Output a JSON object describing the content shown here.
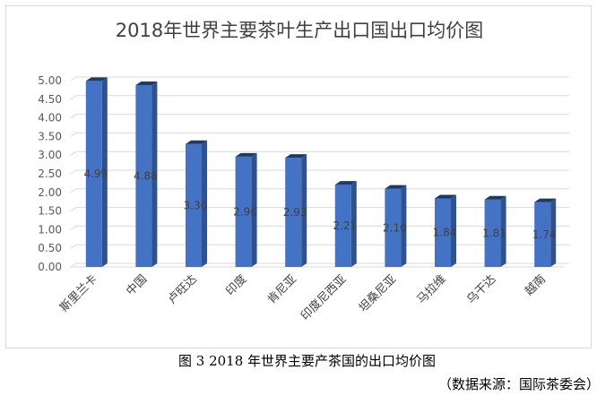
{
  "chart_data": {
    "type": "bar",
    "title": "2018年世界主要茶叶生产出口国出口均价图",
    "categories": [
      "斯里兰卡",
      "中国",
      "卢旺达",
      "印度",
      "肯尼亚",
      "印度尼西亚",
      "坦桑尼亚",
      "马拉维",
      "乌干达",
      "越南"
    ],
    "values": [
      4.99,
      4.88,
      3.3,
      2.96,
      2.93,
      2.21,
      2.1,
      1.84,
      1.81,
      1.74
    ],
    "value_labels": [
      "4.99",
      "4.88",
      "3.30",
      "2.96",
      "2.93",
      "2.21",
      "2.10",
      "1.84",
      "1.81",
      "1.74"
    ],
    "yticks": [
      "0.00",
      "0.50",
      "1.00",
      "1.50",
      "2.00",
      "2.50",
      "3.00",
      "3.50",
      "4.00",
      "4.50",
      "5.00"
    ],
    "ylim": [
      0,
      5
    ],
    "grid": true,
    "bar_color": "#4472c4",
    "bar_side_color": "#2f528f",
    "bar_top_color": "#1f3864"
  },
  "caption": "图 3 2018 年世界主要产茶国的出口均价图",
  "source": "（数据来源：国际茶委会）"
}
